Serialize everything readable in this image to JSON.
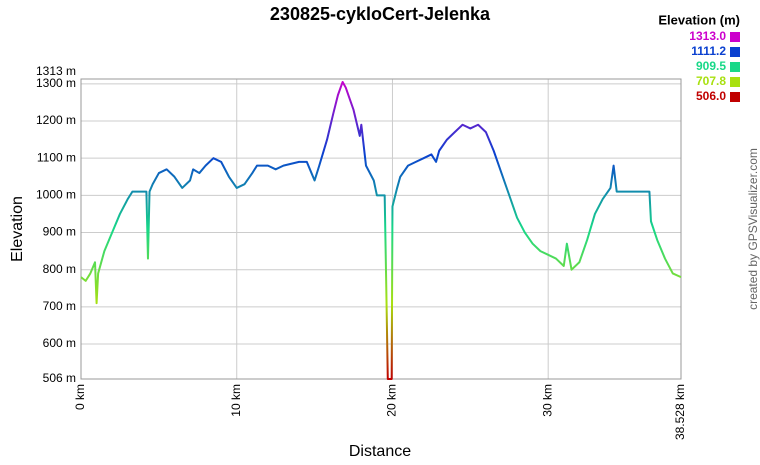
{
  "chart_data": {
    "type": "line",
    "title": "230825-cykloCert-Jelenka",
    "x_label": "Distance",
    "y_label": "Elevation",
    "credit": "created by GPSVisualizer.com",
    "xlim": [
      0,
      38.528
    ],
    "ylim": [
      506,
      1313
    ],
    "xticks": [
      {
        "value": 0,
        "label": "0 km"
      },
      {
        "value": 10,
        "label": "10 km"
      },
      {
        "value": 20,
        "label": "20 km"
      },
      {
        "value": 30,
        "label": "30 km"
      },
      {
        "value": 38.528,
        "label": "38.528 km"
      }
    ],
    "yticks": [
      {
        "value": 506,
        "label": "506 m"
      },
      {
        "value": 600,
        "label": "600 m"
      },
      {
        "value": 700,
        "label": "700 m"
      },
      {
        "value": 800,
        "label": "800 m"
      },
      {
        "value": 900,
        "label": "900 m"
      },
      {
        "value": 1000,
        "label": "1000 m"
      },
      {
        "value": 1100,
        "label": "1100 m"
      },
      {
        "value": 1200,
        "label": "1200 m"
      },
      {
        "value": 1300,
        "label": "1300 m"
      },
      {
        "value": 1313,
        "label": "1313 m"
      }
    ],
    "grid": true,
    "legend": {
      "title": "Elevation (m)",
      "entries": [
        {
          "value": 1313.0,
          "label": "1313.0",
          "color": "#cc00cc"
        },
        {
          "value": 1111.2,
          "label": "1111.2",
          "color": "#0a40d0"
        },
        {
          "value": 909.5,
          "label": "909.5",
          "color": "#18d888"
        },
        {
          "value": 707.8,
          "label": "707.8",
          "color": "#a8e010"
        },
        {
          "value": 506.0,
          "label": "506.0",
          "color": "#c00000"
        }
      ]
    },
    "x": [
      0,
      0.3,
      0.6,
      0.9,
      1.0,
      1.1,
      1.5,
      2.0,
      2.5,
      3.0,
      3.3,
      4.2,
      4.3,
      4.4,
      4.6,
      5.0,
      5.5,
      6.0,
      6.5,
      7.0,
      7.2,
      7.6,
      8.0,
      8.5,
      9.0,
      9.5,
      10.0,
      10.5,
      11.0,
      11.3,
      12.0,
      12.5,
      13.0,
      13.5,
      14.0,
      14.5,
      14.8,
      15.0,
      15.3,
      15.8,
      16.2,
      16.5,
      16.8,
      17.0,
      17.5,
      17.9,
      18.0,
      18.3,
      18.8,
      19.0,
      19.5,
      19.6,
      19.7,
      19.95,
      20.0,
      20.3,
      20.5,
      21.0,
      21.5,
      22.0,
      22.5,
      22.8,
      23.0,
      23.5,
      24.0,
      24.5,
      25.0,
      25.5,
      26.0,
      26.5,
      27.0,
      27.5,
      28.0,
      28.5,
      29.0,
      29.5,
      30.0,
      30.5,
      31.0,
      31.2,
      31.5,
      32.0,
      32.5,
      33.0,
      33.5,
      34.0,
      34.2,
      34.4,
      35.0,
      36.0,
      36.5,
      36.6,
      37.0,
      37.5,
      38.0,
      38.528
    ],
    "values": [
      780,
      770,
      790,
      820,
      710,
      790,
      850,
      900,
      950,
      990,
      1010,
      1010,
      830,
      1010,
      1030,
      1060,
      1070,
      1050,
      1020,
      1040,
      1070,
      1060,
      1080,
      1100,
      1090,
      1050,
      1020,
      1030,
      1060,
      1080,
      1080,
      1070,
      1080,
      1085,
      1090,
      1090,
      1060,
      1040,
      1080,
      1150,
      1220,
      1270,
      1305,
      1290,
      1230,
      1160,
      1190,
      1080,
      1040,
      1000,
      1000,
      760,
      506,
      506,
      970,
      1020,
      1050,
      1080,
      1090,
      1100,
      1110,
      1090,
      1120,
      1150,
      1170,
      1190,
      1180,
      1190,
      1170,
      1120,
      1060,
      1000,
      940,
      900,
      870,
      850,
      840,
      830,
      810,
      870,
      800,
      820,
      880,
      950,
      990,
      1020,
      1080,
      1010,
      1010,
      1010,
      1010,
      930,
      880,
      830,
      790,
      780
    ]
  }
}
